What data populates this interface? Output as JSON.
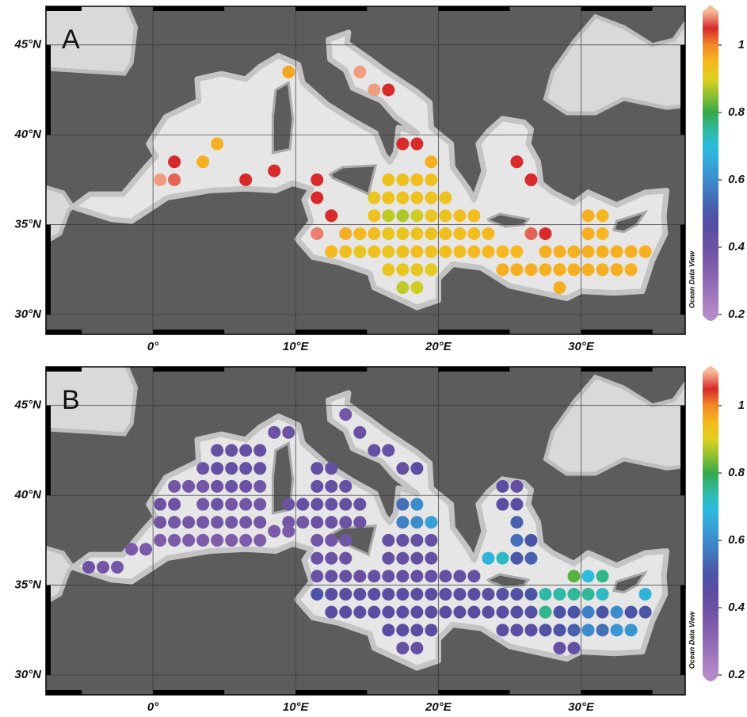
{
  "map": {
    "xlim": [
      -7.5,
      37.3
    ],
    "ylim": [
      28.9,
      47.15
    ],
    "xticks": [
      {
        "value": 0,
        "label": "0°"
      },
      {
        "value": 10,
        "label": "10°E"
      },
      {
        "value": 20,
        "label": "20°E"
      },
      {
        "value": 30,
        "label": "30°E"
      }
    ],
    "yticks": [
      {
        "value": 30,
        "label": "30°N"
      },
      {
        "value": 35,
        "label": "35°N"
      },
      {
        "value": 40,
        "label": "40°N"
      },
      {
        "value": 45,
        "label": "45°N"
      }
    ],
    "grid": true
  },
  "colorbar": {
    "clim": [
      0.2,
      1.1
    ],
    "ticks": [
      0.2,
      0.4,
      0.6,
      0.8,
      1
    ],
    "colormap": [
      "#b48ac6",
      "#a27abd",
      "#8e69b3",
      "#7d5caa",
      "#6c52a4",
      "#5b4ea2",
      "#4b55a8",
      "#4470b8",
      "#3c8ccc",
      "#34a6d8",
      "#2cbcdc",
      "#30b89a",
      "#34a84a",
      "#8cc030",
      "#e0d020",
      "#f6b81e",
      "#f08a28",
      "#d82a2a",
      "#f6b896"
    ]
  },
  "credit": "Ocean Data View",
  "panels": [
    {
      "label": "A",
      "rows": [
        {
          "lat": 43.5,
          "lon": [
            9.5,
            14.5
          ],
          "values": [
            0.97,
            1.09
          ]
        },
        {
          "lat": 42.5,
          "lon": [
            15.5,
            16.5
          ],
          "values": [
            1.09,
            1.05
          ]
        },
        {
          "lat": 39.5,
          "lon": [
            4.5,
            17.5,
            18.5
          ],
          "values": [
            0.96,
            1.05,
            1.05
          ]
        },
        {
          "lat": 38.5,
          "lon": [
            1.5,
            3.5,
            19.5,
            25.5
          ],
          "values": [
            1.05,
            0.96,
            0.96,
            1.05
          ]
        },
        {
          "lat": 38.0,
          "lon": [
            8.5
          ],
          "values": [
            1.05
          ]
        },
        {
          "lat": 37.5,
          "lon": [
            0.5,
            1.5,
            6.5,
            11.5,
            16.5,
            17.5,
            18.5,
            19.5,
            26.5
          ],
          "values": [
            1.09,
            1.07,
            1.05,
            1.05,
            0.93,
            0.93,
            0.94,
            0.93,
            1.05
          ]
        },
        {
          "lat": 36.5,
          "lon": [
            11.5,
            15.5,
            16.5,
            17.5,
            18.5,
            19.5,
            20.5
          ],
          "values": [
            1.05,
            0.92,
            0.93,
            0.93,
            0.93,
            0.93,
            0.93
          ]
        },
        {
          "lat": 35.5,
          "lon": [
            12.5,
            15.5,
            16.5,
            17.5,
            18.5,
            19.5,
            20.5,
            21.5,
            22.5,
            30.5,
            31.5
          ],
          "values": [
            1.05,
            0.93,
            0.88,
            0.87,
            0.89,
            0.92,
            0.93,
            0.94,
            0.94,
            0.96,
            0.95
          ]
        },
        {
          "lat": 34.5,
          "lon": [
            11.5,
            13.5,
            14.5,
            15.5,
            16.5,
            17.5,
            18.5,
            19.5,
            20.5,
            21.5,
            22.5,
            23.5,
            26.5,
            27.5,
            30.5,
            31.5
          ],
          "values": [
            1.08,
            0.96,
            0.95,
            0.94,
            0.92,
            0.92,
            0.93,
            0.93,
            0.94,
            0.94,
            0.94,
            0.95,
            1.07,
            1.05,
            0.96,
            0.95
          ]
        },
        {
          "lat": 33.5,
          "lon": [
            12.5,
            13.5,
            14.5,
            15.5,
            16.5,
            17.5,
            18.5,
            19.5,
            20.5,
            21.5,
            22.5,
            23.5,
            24.5,
            25.5,
            27.5,
            28.5,
            29.5,
            30.5,
            31.5,
            32.5,
            33.5,
            34.5
          ],
          "values": [
            0.95,
            0.94,
            0.92,
            0.93,
            0.92,
            0.93,
            0.94,
            0.93,
            0.94,
            0.94,
            0.95,
            0.95,
            0.95,
            0.95,
            0.96,
            0.96,
            0.96,
            0.96,
            0.96,
            0.96,
            0.96,
            0.96
          ]
        },
        {
          "lat": 32.5,
          "lon": [
            16.5,
            17.5,
            18.5,
            19.5,
            24.5,
            25.5,
            26.5,
            27.5,
            28.5,
            29.5,
            30.5,
            31.5,
            32.5,
            33.5
          ],
          "values": [
            0.92,
            0.92,
            0.92,
            0.91,
            0.96,
            0.96,
            0.96,
            0.96,
            0.96,
            0.96,
            0.96,
            0.96,
            0.96,
            0.96
          ]
        },
        {
          "lat": 31.5,
          "lon": [
            17.5,
            18.5,
            28.5
          ],
          "values": [
            0.88,
            0.89,
            0.96
          ]
        }
      ]
    },
    {
      "label": "B",
      "rows": [
        {
          "lat": 44.5,
          "lon": [
            13.5
          ],
          "values": [
            0.38
          ]
        },
        {
          "lat": 43.5,
          "lon": [
            8.5,
            9.5,
            14.5
          ],
          "values": [
            0.4,
            0.4,
            0.42
          ]
        },
        {
          "lat": 42.5,
          "lon": [
            4.5,
            5.5,
            6.5,
            7.5,
            15.5,
            16.5
          ],
          "values": [
            0.42,
            0.42,
            0.42,
            0.42,
            0.42,
            0.42
          ]
        },
        {
          "lat": 41.5,
          "lon": [
            3.5,
            4.5,
            5.5,
            6.5,
            7.5,
            11.5,
            12.5,
            17.5,
            18.5
          ],
          "values": [
            0.4,
            0.42,
            0.42,
            0.42,
            0.42,
            0.42,
            0.42,
            0.42,
            0.45
          ]
        },
        {
          "lat": 40.5,
          "lon": [
            1.5,
            2.5,
            3.5,
            4.5,
            5.5,
            6.5,
            7.5,
            11.5,
            12.5,
            13.5,
            24.5,
            25.5
          ],
          "values": [
            0.38,
            0.38,
            0.38,
            0.4,
            0.4,
            0.4,
            0.38,
            0.42,
            0.42,
            0.42,
            0.45,
            0.42
          ]
        },
        {
          "lat": 39.5,
          "lon": [
            0.5,
            1.5,
            3.5,
            4.5,
            5.5,
            6.5,
            7.5,
            9.5,
            10.5,
            11.5,
            12.5,
            13.5,
            14.5,
            17.5,
            18.5,
            24.5,
            25.5
          ],
          "values": [
            0.4,
            0.4,
            0.38,
            0.4,
            0.38,
            0.38,
            0.38,
            0.4,
            0.42,
            0.42,
            0.42,
            0.42,
            0.42,
            0.55,
            0.6,
            0.45,
            0.45
          ]
        },
        {
          "lat": 38.5,
          "lon": [
            0.5,
            1.5,
            2.5,
            3.5,
            4.5,
            5.5,
            6.5,
            7.5,
            9.5,
            10.5,
            11.5,
            12.5,
            13.5,
            14.5,
            17.5,
            18.5,
            19.5,
            25.5
          ],
          "values": [
            0.38,
            0.38,
            0.38,
            0.38,
            0.38,
            0.38,
            0.38,
            0.38,
            0.38,
            0.38,
            0.4,
            0.4,
            0.4,
            0.4,
            0.58,
            0.6,
            0.64,
            0.52
          ]
        },
        {
          "lat": 38.0,
          "lon": [
            8.5,
            9.5
          ],
          "values": [
            0.36,
            0.36
          ]
        },
        {
          "lat": 37.5,
          "lon": [
            0.5,
            1.5,
            2.5,
            3.5,
            4.5,
            5.5,
            6.5,
            7.5,
            11.5,
            12.5,
            13.5,
            16.5,
            17.5,
            18.5,
            19.5,
            25.5,
            26.5
          ],
          "values": [
            0.35,
            0.35,
            0.35,
            0.35,
            0.35,
            0.35,
            0.35,
            0.35,
            0.38,
            0.38,
            0.38,
            0.42,
            0.42,
            0.42,
            0.42,
            0.55,
            0.5
          ]
        },
        {
          "lat": 37.0,
          "lon": [
            -1.5,
            -0.5
          ],
          "values": [
            0.36,
            0.36
          ]
        },
        {
          "lat": 36.5,
          "lon": [
            11.5,
            12.5,
            13.5,
            16.5,
            17.5,
            18.5,
            19.5,
            23.5,
            24.5,
            25.5,
            26.5
          ],
          "values": [
            0.4,
            0.4,
            0.4,
            0.42,
            0.42,
            0.42,
            0.42,
            0.68,
            0.72,
            0.5,
            0.52
          ]
        },
        {
          "lat": 36.0,
          "lon": [
            -4.5,
            -3.5,
            -2.5
          ],
          "values": [
            0.4,
            0.38,
            0.38
          ]
        },
        {
          "lat": 35.5,
          "lon": [
            11.5,
            12.5,
            13.5,
            14.5,
            15.5,
            16.5,
            17.5,
            18.5,
            19.5,
            20.5,
            21.5,
            22.5,
            29.5,
            30.5,
            31.5
          ],
          "values": [
            0.4,
            0.42,
            0.42,
            0.42,
            0.42,
            0.42,
            0.42,
            0.42,
            0.42,
            0.42,
            0.42,
            0.42,
            0.82,
            0.7,
            0.76
          ]
        },
        {
          "lat": 34.5,
          "lon": [
            11.5,
            12.5,
            13.5,
            14.5,
            15.5,
            16.5,
            17.5,
            18.5,
            19.5,
            20.5,
            21.5,
            22.5,
            23.5,
            24.5,
            25.5,
            26.5,
            27.5,
            28.5,
            29.5,
            30.5,
            31.5,
            34.5
          ],
          "values": [
            0.5,
            0.45,
            0.45,
            0.45,
            0.45,
            0.45,
            0.45,
            0.45,
            0.45,
            0.45,
            0.45,
            0.45,
            0.46,
            0.47,
            0.48,
            0.5,
            0.74,
            0.74,
            0.75,
            0.75,
            0.72,
            0.68
          ]
        },
        {
          "lat": 33.5,
          "lon": [
            12.5,
            13.5,
            14.5,
            15.5,
            16.5,
            17.5,
            18.5,
            19.5,
            20.5,
            21.5,
            22.5,
            23.5,
            24.5,
            25.5,
            26.5,
            27.5,
            28.5,
            29.5,
            30.5,
            31.5,
            32.5,
            33.5,
            34.5
          ],
          "values": [
            0.45,
            0.45,
            0.45,
            0.45,
            0.45,
            0.45,
            0.45,
            0.45,
            0.45,
            0.45,
            0.45,
            0.45,
            0.45,
            0.46,
            0.47,
            0.76,
            0.5,
            0.5,
            0.58,
            0.5,
            0.6,
            0.5,
            0.5
          ]
        },
        {
          "lat": 32.5,
          "lon": [
            16.5,
            17.5,
            18.5,
            19.5,
            24.5,
            25.5,
            26.5,
            27.5,
            28.5,
            29.5,
            30.5,
            31.5,
            32.5,
            33.5
          ],
          "values": [
            0.45,
            0.45,
            0.45,
            0.45,
            0.45,
            0.45,
            0.45,
            0.48,
            0.5,
            0.52,
            0.6,
            0.55,
            0.62,
            0.62
          ]
        },
        {
          "lat": 31.5,
          "lon": [
            17.5,
            18.5,
            28.5,
            29.5
          ],
          "values": [
            0.42,
            0.42,
            0.42,
            0.42
          ]
        }
      ]
    }
  ]
}
